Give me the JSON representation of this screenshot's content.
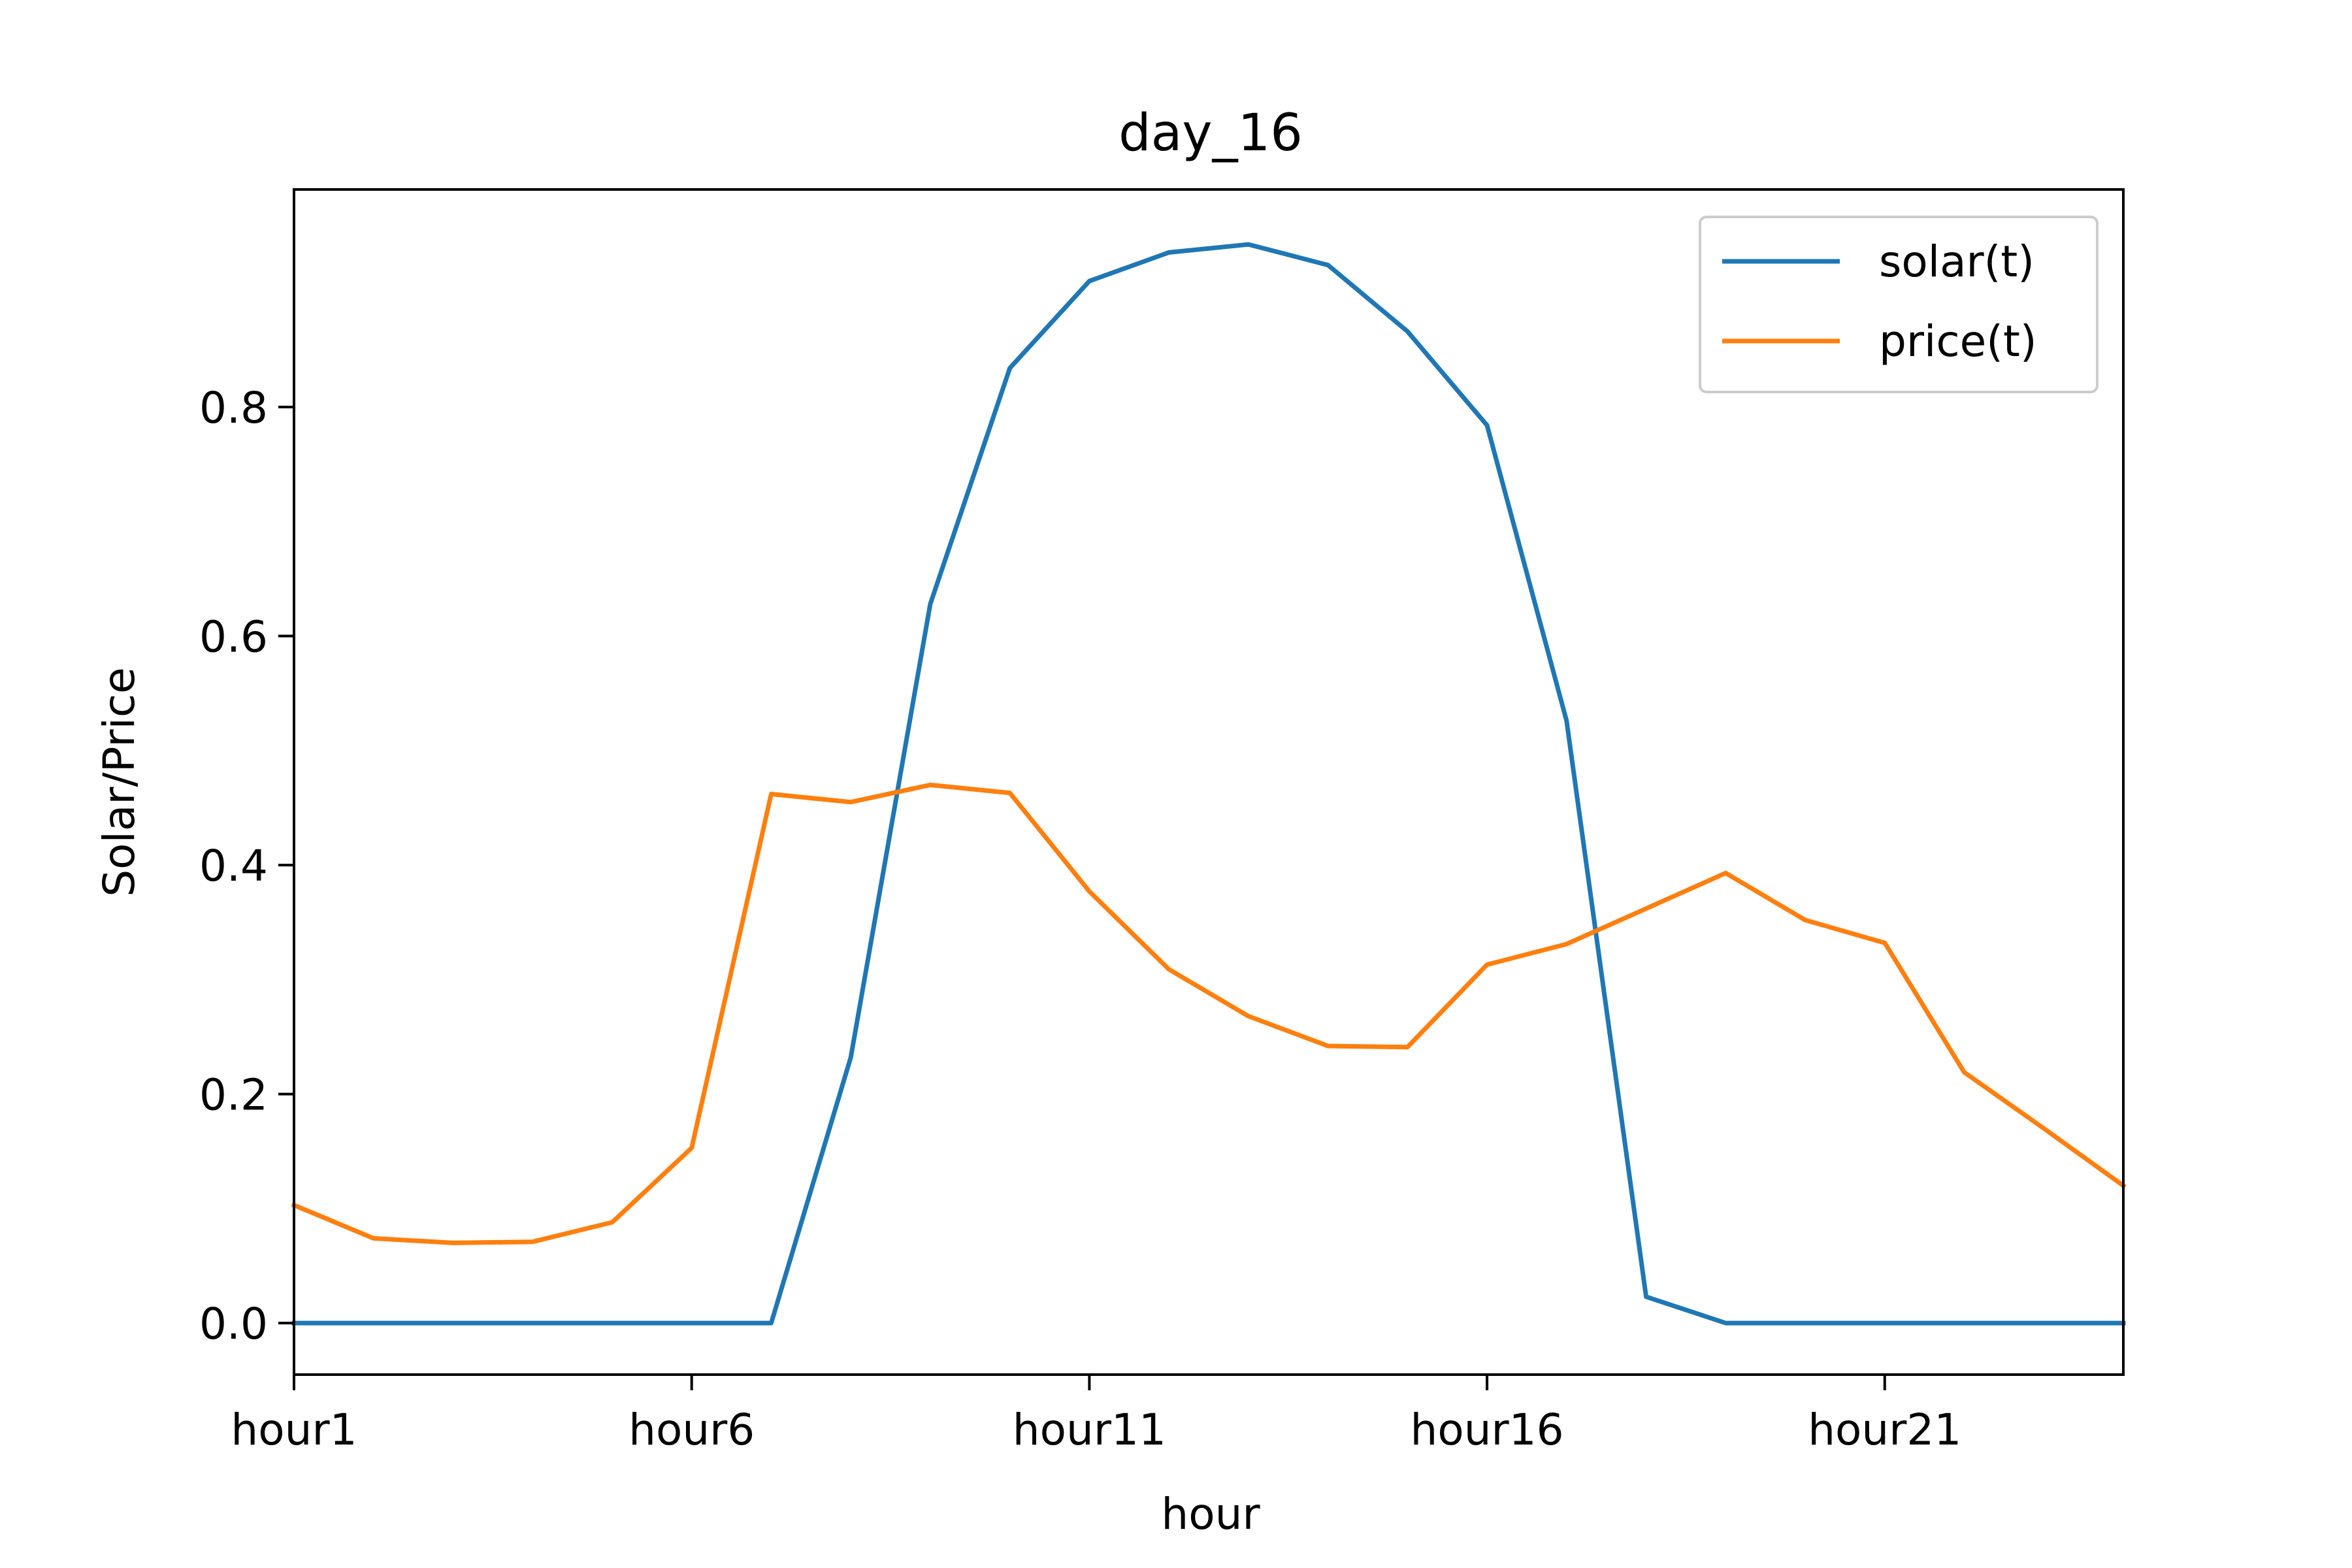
{
  "chart_data": {
    "type": "line",
    "title": "day_16",
    "xlabel": "hour",
    "ylabel": "Solar/Price",
    "x": [
      "hour1",
      "hour2",
      "hour3",
      "hour4",
      "hour5",
      "hour6",
      "hour7",
      "hour8",
      "hour9",
      "hour10",
      "hour11",
      "hour12",
      "hour13",
      "hour14",
      "hour15",
      "hour16",
      "hour17",
      "hour18",
      "hour19",
      "hour20",
      "hour21",
      "hour22",
      "hour23",
      "hour24"
    ],
    "xticks": [
      "hour1",
      "hour6",
      "hour11",
      "hour16",
      "hour21"
    ],
    "ylim": [
      -0.045,
      0.99
    ],
    "yticks": [
      "0.0",
      "0.2",
      "0.4",
      "0.6",
      "0.8"
    ],
    "series": [
      {
        "name": "solar(t)",
        "color": "#1f77b4",
        "values": [
          0.0,
          0.0,
          0.0,
          0.0,
          0.0,
          0.0,
          0.0,
          0.232,
          0.628,
          0.834,
          0.91,
          0.935,
          0.942,
          0.924,
          0.866,
          0.784,
          0.526,
          0.023,
          0.0,
          0.0,
          0.0,
          0.0,
          0.0,
          0.0
        ]
      },
      {
        "name": "price(t)",
        "color": "#ff7f0e",
        "values": [
          0.103,
          0.074,
          0.07,
          0.071,
          0.088,
          0.153,
          0.462,
          0.455,
          0.47,
          0.463,
          0.377,
          0.309,
          0.268,
          0.242,
          0.241,
          0.313,
          0.331,
          0.362,
          0.393,
          0.352,
          0.332,
          0.219,
          0.17,
          0.12
        ]
      }
    ],
    "legend": "top-right",
    "grid": false
  }
}
